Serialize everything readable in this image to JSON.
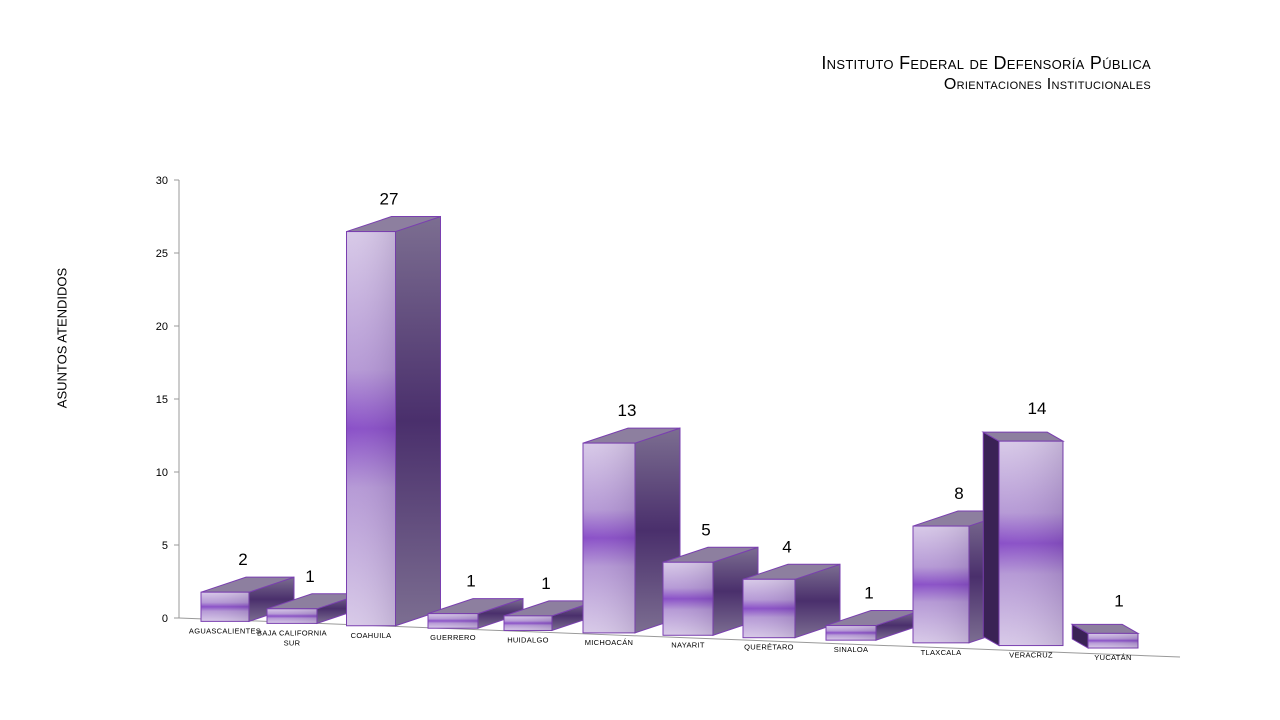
{
  "title": "Instituto Federal de Defensoría Pública",
  "subtitle": "Orientaciones Institucionales",
  "chart_data": {
    "type": "bar",
    "title": "Instituto Federal de Defensoría Pública",
    "subtitle": "Orientaciones Institucionales",
    "xlabel": "",
    "ylabel": "ASUNTOS ATENDIDOS",
    "ylim": [
      0,
      30
    ],
    "yticks": [
      0,
      5,
      10,
      15,
      20,
      25,
      30
    ],
    "categories": [
      [
        "AGUASCALIENTES"
      ],
      [
        "BAJA CALIFORNIA",
        "SUR"
      ],
      [
        "COAHUILA"
      ],
      [
        "GUERRERO"
      ],
      [
        "HUIDALGO"
      ],
      [
        "MICHOACÁN"
      ],
      [
        "NAYARIT"
      ],
      [
        "QUERÉTARO"
      ],
      [
        "SINALOA"
      ],
      [
        "TLAXCALA"
      ],
      [
        "VERACRUZ"
      ],
      [
        "YUCATÁN"
      ]
    ],
    "values": [
      2,
      1,
      27,
      1,
      1,
      13,
      5,
      4,
      1,
      8,
      14,
      1
    ],
    "grid": false,
    "legend": "none",
    "colors": {
      "front_light": "#d9cbe8",
      "front_mid": "#8a50c8",
      "front_dark": "#6a2fa8",
      "top": "#8d7f9f",
      "side": "#6e5f83",
      "edge": "#7a3fb0"
    }
  }
}
